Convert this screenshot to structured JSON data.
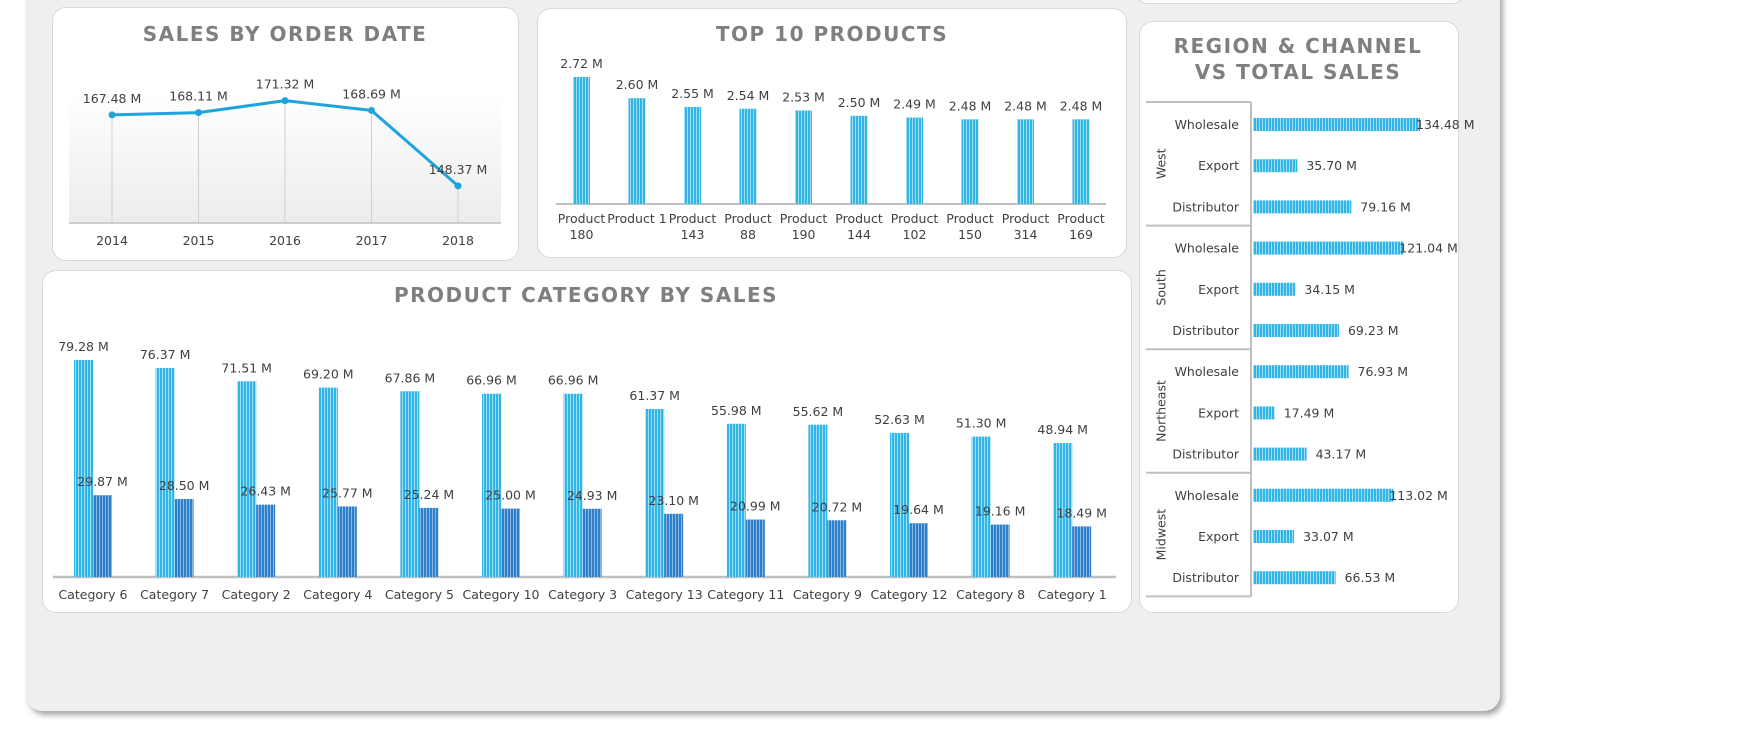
{
  "colors": {
    "bar_light": "#2fb5e6",
    "bar_dark": "#2e7fcb",
    "line": "#1ea4dc",
    "axis": "#bfbfbf",
    "title": "#7f7f7f"
  },
  "chart_data": [
    {
      "id": "sales-by-order-date",
      "type": "line",
      "title": "SALES BY ORDER DATE",
      "categories": [
        "2014",
        "2015",
        "2016",
        "2017",
        "2018"
      ],
      "values": [
        167.48,
        168.11,
        171.32,
        168.69,
        148.37
      ],
      "value_labels": [
        "167.48 M",
        "168.11 M",
        "171.32 M",
        "168.69 M",
        "148.37 M"
      ],
      "unit": "M",
      "grid": false,
      "legend": "none"
    },
    {
      "id": "top-10-products",
      "type": "bar",
      "title": "TOP 10 PRODUCTS",
      "categories": [
        "Product 180",
        "Product 1",
        "Product 143",
        "Product 88",
        "Product 190",
        "Product 144",
        "Product 102",
        "Product 150",
        "Product 314",
        "Product 169"
      ],
      "values": [
        2.72,
        2.6,
        2.55,
        2.54,
        2.53,
        2.5,
        2.49,
        2.48,
        2.48,
        2.48
      ],
      "value_labels": [
        "2.72 M",
        "2.60 M",
        "2.55 M",
        "2.54 M",
        "2.53 M",
        "2.50 M",
        "2.49 M",
        "2.48 M",
        "2.48 M",
        "2.48 M"
      ],
      "unit": "M",
      "legend": "none"
    },
    {
      "id": "product-category-by-sales",
      "type": "bar",
      "title": "PRODUCT CATEGORY BY SALES",
      "categories": [
        "Category 6",
        "Category 7",
        "Category 2",
        "Category 4",
        "Category 5",
        "Category 10",
        "Category 3",
        "Category 13",
        "Category 11",
        "Category 9",
        "Category 12",
        "Category 8",
        "Category 1"
      ],
      "series": [
        {
          "values": [
            79.28,
            76.37,
            71.51,
            69.2,
            67.86,
            66.96,
            66.96,
            61.37,
            55.98,
            55.62,
            52.63,
            51.3,
            48.94
          ],
          "value_labels": [
            "79.28 M",
            "76.37 M",
            "71.51 M",
            "69.20 M",
            "67.86 M",
            "66.96 M",
            "66.96 M",
            "61.37 M",
            "55.98 M",
            "55.62 M",
            "52.63 M",
            "51.30 M",
            "48.94 M"
          ]
        },
        {
          "values": [
            29.87,
            28.5,
            26.43,
            25.77,
            25.24,
            25.0,
            24.93,
            23.1,
            20.99,
            20.72,
            19.64,
            19.16,
            18.49
          ],
          "value_labels": [
            "29.87 M",
            "28.50 M",
            "26.43 M",
            "25.77 M",
            "25.24 M",
            "25.00 M",
            "24.93 M",
            "23.10 M",
            "20.99 M",
            "20.72 M",
            "19.64 M",
            "19.16 M",
            "18.49 M"
          ]
        }
      ],
      "unit": "M",
      "legend": "none"
    },
    {
      "id": "region-channel-vs-total-sales",
      "type": "bar",
      "orientation": "horizontal",
      "title_lines": [
        "REGION & CHANNEL",
        "VS TOTAL SALES"
      ],
      "groups": [
        {
          "region": "West",
          "items": [
            {
              "channel": "Wholesale",
              "value": 134.48,
              "label": "134.48 M"
            },
            {
              "channel": "Export",
              "value": 35.7,
              "label": "35.70 M"
            },
            {
              "channel": "Distributor",
              "value": 79.16,
              "label": "79.16 M"
            }
          ]
        },
        {
          "region": "South",
          "items": [
            {
              "channel": "Wholesale",
              "value": 121.04,
              "label": "121.04 M"
            },
            {
              "channel": "Export",
              "value": 34.15,
              "label": "34.15 M"
            },
            {
              "channel": "Distributor",
              "value": 69.23,
              "label": "69.23 M"
            }
          ]
        },
        {
          "region": "Northeast",
          "items": [
            {
              "channel": "Wholesale",
              "value": 76.93,
              "label": "76.93 M"
            },
            {
              "channel": "Export",
              "value": 17.49,
              "label": "17.49 M"
            },
            {
              "channel": "Distributor",
              "value": 43.17,
              "label": "43.17 M"
            }
          ]
        },
        {
          "region": "Midwest",
          "items": [
            {
              "channel": "Wholesale",
              "value": 113.02,
              "label": "113.02 M"
            },
            {
              "channel": "Export",
              "value": 33.07,
              "label": "33.07 M"
            },
            {
              "channel": "Distributor",
              "value": 66.53,
              "label": "66.53 M"
            }
          ]
        }
      ],
      "unit": "M",
      "legend": "none"
    }
  ]
}
